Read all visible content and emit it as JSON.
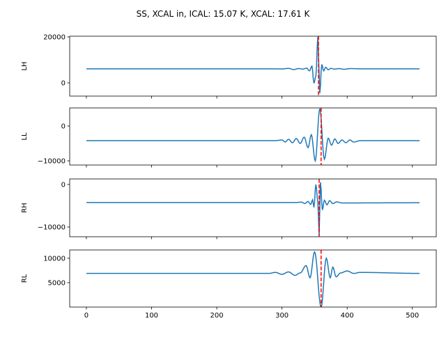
{
  "chart_data": {
    "type": "line",
    "title": "SS, XCAL in, ICAL: 15.07 K, XCAL: 17.61 K",
    "xlim": [
      -25.6,
      536.6
    ],
    "xticks": [
      0,
      100,
      200,
      300,
      400,
      500
    ],
    "x_range": [
      0,
      511
    ],
    "line_color": "#1f77b4",
    "marker_color": "#ff0000",
    "panels": [
      {
        "ylabel": "LH",
        "ylim": [
          -5760,
          20300
        ],
        "yticks": [
          0,
          20000
        ],
        "marker_x": 356,
        "baseline": 6100,
        "points": [
          [
            0,
            6100
          ],
          [
            290,
            6100
          ],
          [
            300,
            6050
          ],
          [
            310,
            6300
          ],
          [
            318,
            5800
          ],
          [
            325,
            6200
          ],
          [
            332,
            6000
          ],
          [
            338,
            6400
          ],
          [
            342,
            5200
          ],
          [
            346,
            7300
          ],
          [
            349,
            -200
          ],
          [
            352,
            3000
          ],
          [
            355,
            20000
          ],
          [
            357,
            4000
          ],
          [
            358,
            -4500
          ],
          [
            361,
            8000
          ],
          [
            364,
            5200
          ],
          [
            367,
            6800
          ],
          [
            371,
            5700
          ],
          [
            375,
            6300
          ],
          [
            380,
            6000
          ],
          [
            388,
            6200
          ],
          [
            395,
            5900
          ],
          [
            405,
            6200
          ],
          [
            420,
            6100
          ],
          [
            511,
            6100
          ]
        ]
      },
      {
        "ylabel": "LL",
        "ylim": [
          -11200,
          5200
        ],
        "yticks": [
          -10000,
          0
        ],
        "marker_x": 360,
        "baseline": -4200,
        "points": [
          [
            0,
            -4200
          ],
          [
            290,
            -4200
          ],
          [
            300,
            -4000
          ],
          [
            305,
            -4600
          ],
          [
            310,
            -3800
          ],
          [
            316,
            -4800
          ],
          [
            322,
            -3600
          ],
          [
            328,
            -5000
          ],
          [
            334,
            -3200
          ],
          [
            340,
            -6200
          ],
          [
            345,
            -2500
          ],
          [
            351,
            -10000
          ],
          [
            358,
            5000
          ],
          [
            365,
            -9500
          ],
          [
            371,
            -3500
          ],
          [
            376,
            -5500
          ],
          [
            381,
            -3700
          ],
          [
            386,
            -5000
          ],
          [
            392,
            -4000
          ],
          [
            398,
            -4800
          ],
          [
            404,
            -4000
          ],
          [
            410,
            -4600
          ],
          [
            420,
            -4200
          ],
          [
            511,
            -4200
          ]
        ]
      },
      {
        "ylabel": "RH",
        "ylim": [
          -12300,
          1300
        ],
        "yticks": [
          -10000,
          0
        ],
        "marker_x": 357,
        "baseline": -4260,
        "points": [
          [
            0,
            -4260
          ],
          [
            320,
            -4260
          ],
          [
            330,
            -4150
          ],
          [
            335,
            -4500
          ],
          [
            340,
            -4000
          ],
          [
            344,
            -4700
          ],
          [
            347,
            -3600
          ],
          [
            349,
            -5400
          ],
          [
            352,
            0
          ],
          [
            355,
            -4000
          ],
          [
            357,
            -12000
          ],
          [
            359,
            500
          ],
          [
            362,
            -6000
          ],
          [
            365,
            -3700
          ],
          [
            369,
            -4800
          ],
          [
            373,
            -3800
          ],
          [
            378,
            -4500
          ],
          [
            384,
            -4100
          ],
          [
            392,
            -4350
          ],
          [
            511,
            -4300
          ]
        ]
      },
      {
        "ylabel": "RL",
        "ylim": [
          0,
          11700
        ],
        "yticks": [
          5000,
          10000
        ],
        "marker_x": 360,
        "baseline": 6900,
        "points": [
          [
            0,
            6900
          ],
          [
            280,
            6900
          ],
          [
            290,
            7100
          ],
          [
            300,
            6700
          ],
          [
            310,
            7200
          ],
          [
            320,
            6500
          ],
          [
            328,
            7000
          ],
          [
            337,
            8500
          ],
          [
            343,
            6000
          ],
          [
            350,
            11300
          ],
          [
            360,
            0
          ],
          [
            368,
            10000
          ],
          [
            374,
            6000
          ],
          [
            378,
            8200
          ],
          [
            383,
            6200
          ],
          [
            390,
            7000
          ],
          [
            400,
            7400
          ],
          [
            410,
            6900
          ],
          [
            420,
            7100
          ],
          [
            511,
            6900
          ]
        ]
      }
    ]
  }
}
